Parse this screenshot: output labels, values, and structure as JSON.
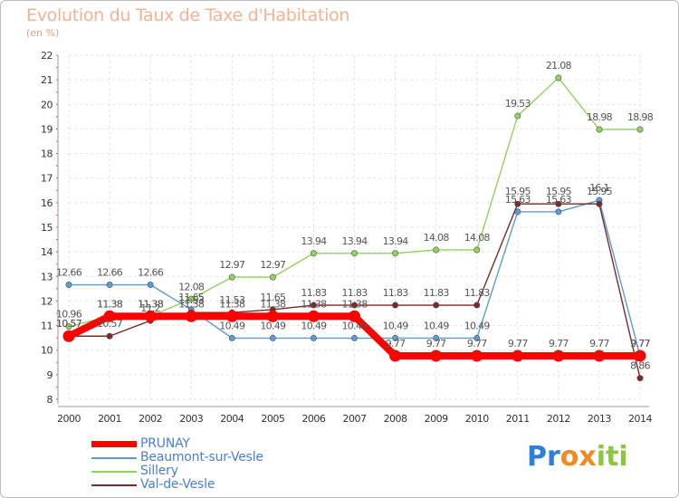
{
  "chart_data": {
    "type": "line",
    "title": "Evolution du Taux de Taxe d'Habitation",
    "subtitle": "(en %)",
    "x": [
      "2000",
      "2001",
      "2002",
      "2003",
      "2004",
      "2005",
      "2006",
      "2007",
      "2008",
      "2009",
      "2010",
      "2011",
      "2012",
      "2013",
      "2014"
    ],
    "ylim": [
      8,
      22
    ],
    "yticks": [
      "8",
      "9",
      "10",
      "11",
      "12",
      "13",
      "14",
      "15",
      "16",
      "17",
      "18",
      "19",
      "20",
      "21",
      "22"
    ],
    "grid": true,
    "legend_position": "bottom-left",
    "series": [
      {
        "name": "PRUNAY",
        "color": "#ff0000",
        "values": [
          10.57,
          11.38,
          11.38,
          11.38,
          11.38,
          11.38,
          11.38,
          11.38,
          9.77,
          9.77,
          9.77,
          9.77,
          9.77,
          9.77,
          9.77
        ],
        "labels": [
          "10.57",
          "11.38",
          "11.38",
          "11.38",
          "11.38",
          "11.38",
          "11.38",
          "11.38",
          "9.77",
          "9.77",
          "9.77",
          "9.77",
          "9.77",
          "9.77",
          "9.77"
        ]
      },
      {
        "name": "Beaumont-sur-Vesle",
        "color": "#5b9bd5",
        "values": [
          12.66,
          12.66,
          12.66,
          11.65,
          10.49,
          10.49,
          10.49,
          10.49,
          10.49,
          10.49,
          10.49,
          15.63,
          15.63,
          16.1,
          9.77
        ],
        "labels": [
          "12.66",
          "12.66",
          "12.66",
          "11.65",
          "10.49",
          "10.49",
          "10.49",
          "10.49",
          "10.49",
          "10.49",
          "10.49",
          "15.63",
          "15.63",
          "16.1",
          "9.77"
        ]
      },
      {
        "name": "Sillery",
        "color": "#90d45c",
        "values": [
          10.96,
          11.38,
          11.38,
          12.08,
          12.97,
          12.97,
          13.94,
          13.94,
          13.94,
          14.08,
          14.08,
          19.53,
          21.08,
          18.98,
          18.98
        ],
        "labels": [
          "10.96",
          "11.38",
          "11.38",
          "12.08",
          "12.97",
          "12.97",
          "13.94",
          "13.94",
          "13.94",
          "14.08",
          "14.08",
          "19.53",
          "21.08",
          "18.98",
          "18.98"
        ]
      },
      {
        "name": "Val-de-Vesle",
        "color": "#7a2a2a",
        "values": [
          10.57,
          10.57,
          11.2,
          11.53,
          11.53,
          11.65,
          11.83,
          11.83,
          11.83,
          11.83,
          11.83,
          15.95,
          15.95,
          15.95,
          8.86
        ],
        "labels": [
          "10.57",
          "10.57",
          "11.2",
          "11.53",
          "11.53",
          "11.65",
          "11.83",
          "11.83",
          "11.83",
          "11.83",
          "11.83",
          "15.95",
          "15.95",
          "15.95",
          "8.86"
        ]
      }
    ]
  },
  "logo": {
    "letters": [
      "P",
      "r",
      "o",
      "x",
      "i",
      "t",
      "i"
    ],
    "colors": [
      "#2e7fd9",
      "#2e7fd9",
      "#f08a24",
      "#f08a24",
      "#8cc63f",
      "#8cc63f",
      "#8cc63f"
    ]
  }
}
